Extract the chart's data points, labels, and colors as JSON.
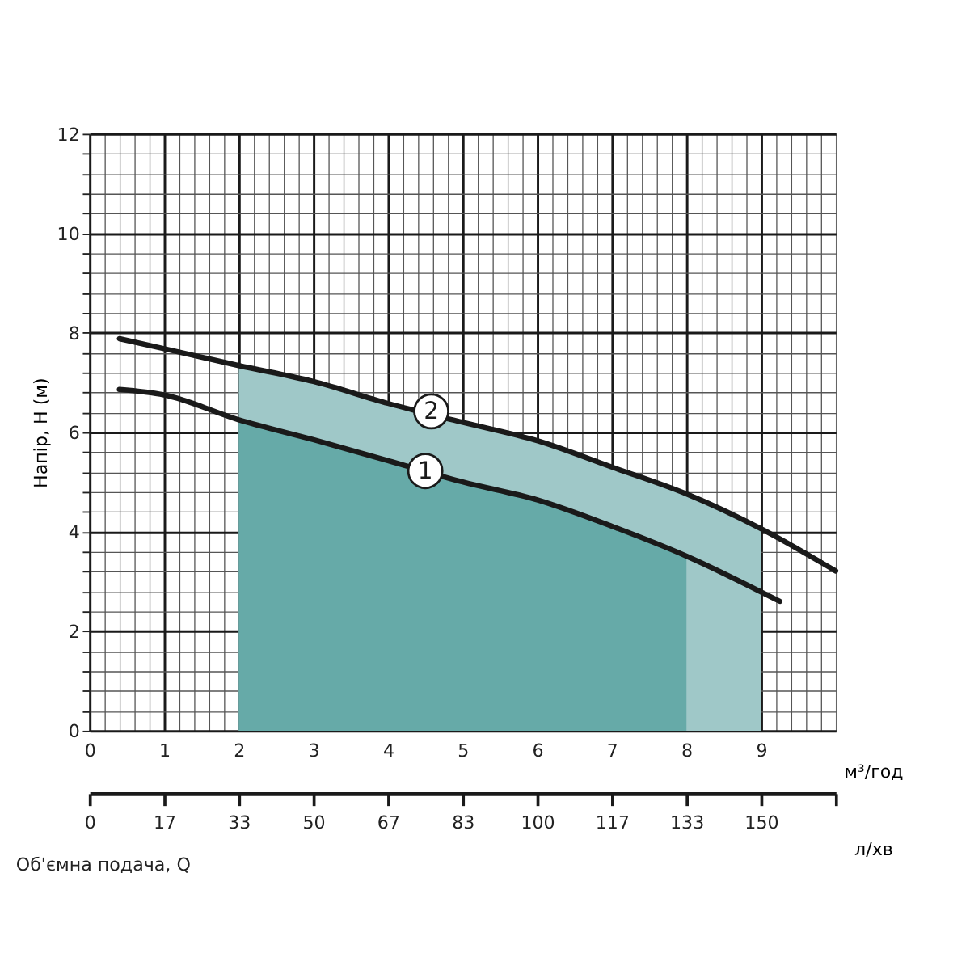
{
  "chart_data": {
    "type": "line",
    "xlabel": "м³/год",
    "x2label": "л/хв",
    "ylabel": "Напір, Н (м)",
    "annotations": [
      "Об'ємна подача, Q",
      {
        "text": "1",
        "x": 4.5,
        "y": 5.22
      },
      {
        "text": "2",
        "x": 4.58,
        "y": 6.42
      }
    ],
    "xlim": [
      0,
      10
    ],
    "ylim": [
      0,
      12
    ],
    "x2lim": [
      0,
      166.67
    ],
    "xticks": [
      0,
      {
        "value": 0.2,
        "label": null
      },
      {
        "value": 0.4,
        "label": null
      },
      {
        "value": 0.6,
        "label": null
      },
      {
        "value": 0.8,
        "label": null
      },
      1,
      {
        "value": 1.2,
        "label": null
      },
      {
        "value": 1.4,
        "label": null
      },
      {
        "value": 1.6,
        "label": null
      },
      {
        "value": 1.8,
        "label": null
      },
      2,
      {
        "value": 2.2,
        "label": null
      },
      {
        "value": 2.4,
        "label": null
      },
      {
        "value": 2.6,
        "label": null
      },
      {
        "value": 2.8,
        "label": null
      },
      3,
      {
        "value": 3.2,
        "label": null
      },
      {
        "value": 3.4,
        "label": null
      },
      {
        "value": 3.6,
        "label": null
      },
      {
        "value": 3.8,
        "label": null
      },
      4,
      {
        "value": 4.2,
        "label": null
      },
      {
        "value": 4.4,
        "label": null
      },
      {
        "value": 4.6,
        "label": null
      },
      {
        "value": 4.8,
        "label": null
      },
      5,
      {
        "value": 5.2,
        "label": null
      },
      {
        "value": 5.4,
        "label": null
      },
      {
        "value": 5.6,
        "label": null
      },
      {
        "value": 5.8,
        "label": null
      },
      6,
      {
        "value": 6.2,
        "label": null
      },
      {
        "value": 6.4,
        "label": null
      },
      {
        "value": 6.6,
        "label": null
      },
      {
        "value": 6.8,
        "label": null
      },
      7,
      {
        "value": 7.2,
        "label": null
      },
      {
        "value": 7.4,
        "label": null
      },
      {
        "value": 7.6,
        "label": null
      },
      {
        "value": 7.8,
        "label": null
      },
      8,
      {
        "value": 8.2,
        "label": null
      },
      {
        "value": 8.4,
        "label": null
      },
      {
        "value": 8.6,
        "label": null
      },
      {
        "value": 8.8,
        "label": null
      },
      9,
      {
        "value": 9.2,
        "label": null
      },
      {
        "value": 9.4,
        "label": null
      },
      {
        "value": 9.6,
        "label": null
      },
      {
        "value": 9.8,
        "label": null
      },
      {
        "value": 10,
        "label": null
      }
    ],
    "yticks": [
      0,
      {
        "value": 0.4,
        "label": null
      },
      {
        "value": 0.8,
        "label": null
      },
      {
        "value": 1.2,
        "label": null
      },
      {
        "value": 1.6,
        "label": null
      },
      2,
      {
        "value": 2.4,
        "label": null
      },
      {
        "value": 2.8,
        "label": null
      },
      {
        "value": 3.2,
        "label": null
      },
      {
        "value": 3.6,
        "label": null
      },
      4,
      {
        "value": 4.4,
        "label": null
      },
      {
        "value": 4.8,
        "label": null
      },
      {
        "value": 5.2,
        "label": null
      },
      {
        "value": 5.6,
        "label": null
      },
      6,
      {
        "value": 6.4,
        "label": null
      },
      {
        "value": 6.8,
        "label": null
      },
      {
        "value": 7.2,
        "label": null
      },
      {
        "value": 7.6,
        "label": null
      },
      8,
      {
        "value": 8.4,
        "label": null
      },
      {
        "value": 8.8,
        "label": null
      },
      {
        "value": 9.2,
        "label": null
      },
      {
        "value": 9.6,
        "label": null
      },
      10,
      {
        "value": 10.4,
        "label": null
      },
      {
        "value": 10.8,
        "label": null
      },
      {
        "value": 11.2,
        "label": null
      },
      {
        "value": 11.6,
        "label": null
      },
      12
    ],
    "x2ticks": [
      0,
      {
        "value": 16.67,
        "label": "17"
      },
      {
        "value": 33.33,
        "label": "33"
      },
      50,
      {
        "value": 66.67,
        "label": "67"
      },
      {
        "value": 83.33,
        "label": "83"
      },
      100,
      {
        "value": 116.67,
        "label": "117"
      },
      {
        "value": 133.33,
        "label": "133"
      },
      150,
      {
        "value": 166.67,
        "label": null
      }
    ],
    "grid": true,
    "series": [
      {
        "type": "area",
        "color": "#9fc8c8",
        "x": [
          2,
          3,
          4,
          5,
          6,
          7,
          8,
          9
        ],
        "values": [
          7.34,
          7.02,
          6.58,
          6.2,
          5.83,
          5.3,
          4.76,
          4.06
        ]
      },
      {
        "type": "area",
        "color": "#66aaa8",
        "x": [
          2,
          3,
          4,
          5,
          6,
          7,
          8
        ],
        "values": [
          6.25,
          5.85,
          5.43,
          5.0,
          4.64,
          4.11,
          3.51
        ]
      },
      {
        "type": "line",
        "color": "#1a1a1a",
        "x": [
          0.4,
          1,
          2,
          3,
          4,
          5,
          6,
          7,
          8,
          9.25
        ],
        "values": [
          6.86,
          6.75,
          6.25,
          5.85,
          5.43,
          5.0,
          4.64,
          4.11,
          3.51,
          2.6
        ]
      },
      {
        "type": "line",
        "color": "#1a1a1a",
        "x": [
          0.4,
          1,
          2,
          3,
          4,
          5,
          6,
          7,
          8,
          9,
          10
        ],
        "values": [
          7.88,
          7.68,
          7.34,
          7.02,
          6.58,
          6.2,
          5.83,
          5.3,
          4.76,
          4.06,
          3.21
        ]
      }
    ]
  }
}
